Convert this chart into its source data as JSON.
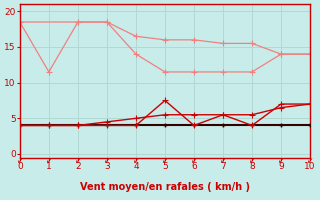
{
  "xlabel": "Vent moyen/en rafales ( km/h )",
  "xlim": [
    0,
    10
  ],
  "ylim": [
    -0.5,
    21
  ],
  "yticks": [
    0,
    5,
    10,
    15,
    20
  ],
  "xticks": [
    0,
    1,
    2,
    3,
    4,
    5,
    6,
    7,
    8,
    9,
    10
  ],
  "background_color": "#c8ecea",
  "grid_color": "#b0d8d4",
  "line_pink1_x": [
    0,
    1,
    2,
    3,
    4,
    5,
    6,
    7,
    8,
    9,
    10
  ],
  "line_pink1_y": [
    18.5,
    11.5,
    18.5,
    18.5,
    14.0,
    11.5,
    11.5,
    11.5,
    11.5,
    14.0,
    14.0
  ],
  "line_pink2_x": [
    0,
    2,
    3,
    4,
    5,
    6,
    7,
    8,
    9,
    10
  ],
  "line_pink2_y": [
    18.5,
    18.5,
    18.5,
    16.5,
    16.0,
    16.0,
    15.5,
    15.5,
    14.0,
    14.0
  ],
  "line_red1_x": [
    0,
    1,
    2,
    3,
    4,
    5,
    6,
    7,
    8,
    9,
    10
  ],
  "line_red1_y": [
    4.0,
    4.0,
    4.0,
    4.0,
    4.0,
    7.5,
    4.0,
    5.5,
    4.0,
    7.0,
    7.0
  ],
  "line_red2_x": [
    0,
    1,
    2,
    3,
    4,
    5,
    6,
    7,
    8,
    9,
    10
  ],
  "line_red2_y": [
    4.0,
    4.0,
    4.0,
    4.5,
    5.0,
    5.5,
    5.5,
    5.5,
    5.5,
    6.5,
    7.0
  ],
  "line_black_x": [
    0,
    1,
    2,
    3,
    4,
    5,
    6,
    7,
    8,
    9,
    10
  ],
  "line_black_y": [
    4.0,
    4.0,
    4.0,
    4.0,
    4.0,
    4.0,
    4.0,
    4.0,
    4.0,
    4.0,
    4.0
  ],
  "pink_color": "#f08080",
  "red_color": "#cc0000",
  "dark_color": "#330000",
  "axis_color": "#cc0000",
  "label_color": "#cc0000",
  "grid_zorder": 1
}
